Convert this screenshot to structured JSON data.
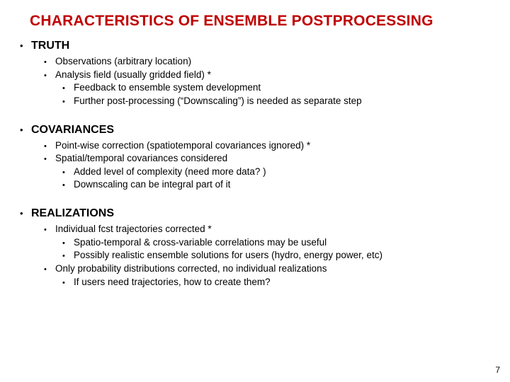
{
  "title": "CHARACTERISTICS OF ENSEMBLE POSTPROCESSING",
  "title_color": "#c00000",
  "background_color": "#ffffff",
  "text_color": "#000000",
  "font_family": "Arial",
  "title_fontsize": 21,
  "section_head_fontsize": 16,
  "body_fontsize": 13.5,
  "page_number": "7",
  "sections": [
    {
      "head": "TRUTH",
      "items": [
        {
          "text": "Observations (arbitrary location)",
          "sub": []
        },
        {
          "text": "Analysis field (usually gridded field) *",
          "sub": [
            "Feedback to ensemble system development",
            "Further post-processing (“Downscaling”) is needed as separate step"
          ]
        }
      ]
    },
    {
      "head": "COVARIANCES",
      "items": [
        {
          "text": "Point-wise correction (spatiotemporal covariances ignored) *",
          "sub": []
        },
        {
          "text": "Spatial/temporal covariances considered",
          "sub": [
            "Added level of complexity (need more data? )",
            "Downscaling can be integral part of it"
          ]
        }
      ]
    },
    {
      "head": "REALIZATIONS",
      "items": [
        {
          "text": "Individual fcst trajectories corrected *",
          "sub": [
            "Spatio-temporal & cross-variable correlations may be useful",
            "Possibly realistic ensemble solutions for users (hydro, energy power, etc)"
          ]
        },
        {
          "text": "Only probability distributions corrected, no individual realizations",
          "sub": [
            "If users need trajectories, how to create them?"
          ]
        }
      ]
    }
  ]
}
